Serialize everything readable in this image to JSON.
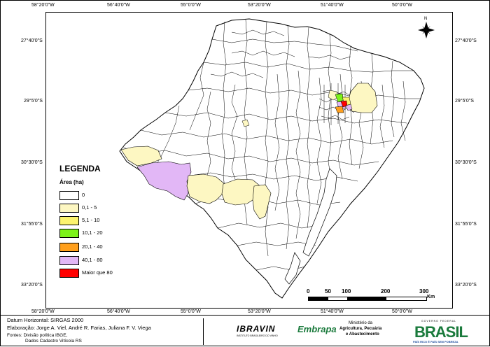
{
  "map": {
    "lon_labels": [
      "58°20'0\"W",
      "56°40'0\"W",
      "55°0'0\"W",
      "53°20'0\"W",
      "51°40'0\"W",
      "50°0'0\"W"
    ],
    "lat_labels": [
      "27°40'0\"S",
      "29°5'0\"S",
      "30°30'0\"S",
      "31°55'0\"S",
      "33°20'0\"S"
    ],
    "north_label": "N"
  },
  "legend": {
    "title": "LEGENDA",
    "subtitle": "Área (ha)",
    "classes": [
      {
        "label": "0",
        "color": "#ffffff"
      },
      {
        "label": "0,1 - 5",
        "color": "#fdf7c2"
      },
      {
        "label": "5,1 - 10",
        "color": "#fbf36e"
      },
      {
        "label": "10,1 - 20",
        "color": "#7cf21a"
      },
      {
        "label": "20,1 - 40",
        "color": "#ff9f1c"
      },
      {
        "label": "40,1 - 80",
        "color": "#e2b7f6"
      },
      {
        "label": "Maior que 80",
        "color": "#ff0000"
      }
    ]
  },
  "scale": {
    "ticks": [
      "0",
      "50",
      "100",
      "200",
      "300"
    ],
    "unit": "Km"
  },
  "footer": {
    "datum": "Datum Horizontal: SIRGAS 2000",
    "elaboracao": "Elaboração: Jorge A. Viel, André R. Farias, Juliana F. V. Viega",
    "fontes_line1": "Fontes: Divisão política IBGE,",
    "fontes_line2": "Dados Cadastro Vitícola RS"
  },
  "logos": {
    "ibravin": "IBRAVIN",
    "ibravin_sub": "INSTITUTO BRASILEIRO DO VINHO",
    "embrapa": "Embrapa",
    "ministerio_line1": "Ministério da",
    "ministerio_line2": "Agricultura, Pecuária",
    "ministerio_line3": "e Abastecimento",
    "gov_top": "GOVERNO FEDERAL",
    "brasil": "BRASIL",
    "brasil_slogan": "PAÍS RICO É PAÍS SEM POBREZA"
  }
}
